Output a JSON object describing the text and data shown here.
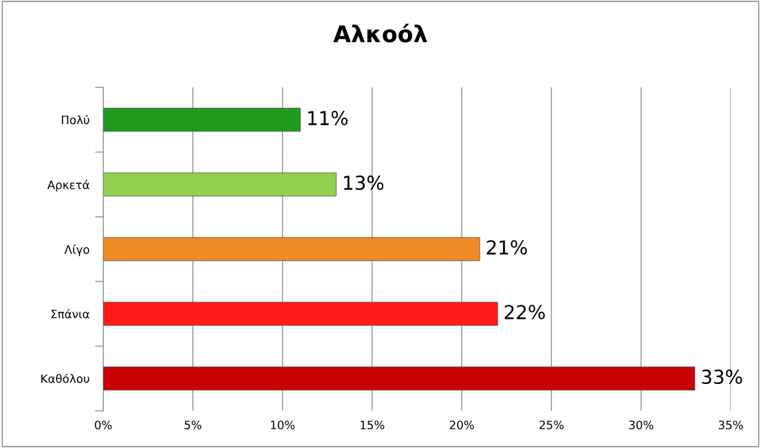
{
  "chart_data": {
    "type": "bar",
    "orientation": "horizontal",
    "title": "Αλκοόλ",
    "categories": [
      "Πολύ",
      "Αρκετά",
      "Λίγο",
      "Σπάνια",
      "Καθόλου"
    ],
    "values": [
      11,
      13,
      21,
      22,
      33
    ],
    "colors": [
      "#1f9a1f",
      "#92d050",
      "#f08a24",
      "#ff1a1a",
      "#c80000"
    ],
    "value_labels": [
      "11%",
      "13%",
      "21%",
      "22%",
      "33%"
    ],
    "xlim": [
      0,
      35
    ],
    "xticks": [
      {
        "value": 0,
        "label": "0%"
      },
      {
        "value": 5,
        "label": "5%"
      },
      {
        "value": 10,
        "label": "10%"
      },
      {
        "value": 15,
        "label": "15%"
      },
      {
        "value": 20,
        "label": "20%"
      },
      {
        "value": 25,
        "label": "25%"
      },
      {
        "value": 30,
        "label": "30%"
      },
      {
        "value": 35,
        "label": "35%"
      }
    ],
    "grid": "x"
  }
}
